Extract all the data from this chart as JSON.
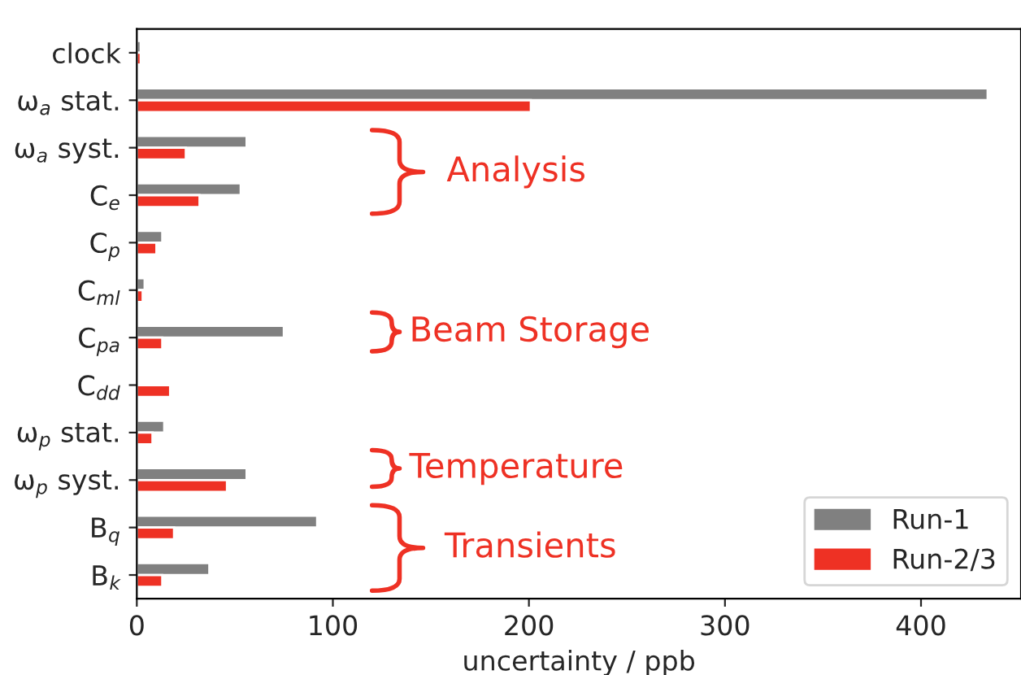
{
  "chart_data": {
    "type": "bar",
    "orientation": "horizontal",
    "categories": [
      "clock",
      "ω$_{a}$ stat.",
      "ω$_{a}$ syst.",
      "C$_{e}$",
      "C$_{p}$",
      "C$_{ml}$",
      "C$_{pa}$",
      "C$_{dd}$",
      "ω$_{p}$ stat.",
      "ω$_{p}$ syst.",
      "B$_{q}$",
      "B$_{k}$"
    ],
    "series": [
      {
        "name": "Run-1",
        "color": "#808080",
        "values": [
          2,
          434,
          56,
          53,
          13,
          4,
          75,
          null,
          14,
          56,
          92,
          37
        ]
      },
      {
        "name": "Run-2/3",
        "color": "#ee3124",
        "values": [
          2,
          201,
          25,
          32,
          10,
          3,
          13,
          17,
          8,
          46,
          19,
          13
        ]
      }
    ],
    "xlabel": "uncertainty / ppb",
    "xlim": [
      0,
      451
    ],
    "xticks": [
      0,
      100,
      200,
      300,
      400
    ],
    "annotations": [
      "Analysis",
      "Beam Storage",
      "Temperature",
      "Transients"
    ],
    "legend": "bottom right",
    "grid": false
  }
}
